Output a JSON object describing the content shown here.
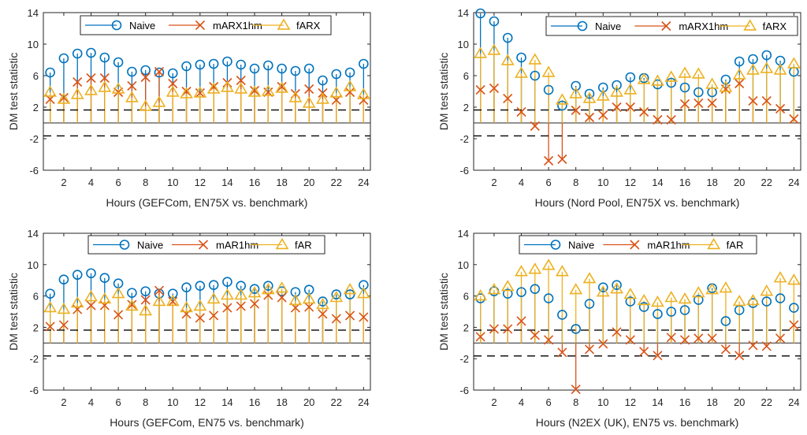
{
  "figure": {
    "colors": {
      "naive": "#0072BD",
      "marx": "#D95319",
      "farx": "#EDB120",
      "axis": "#262626",
      "critical_line": "#000000",
      "zero_line": "#262626"
    }
  },
  "chart_data": [
    {
      "type": "stem",
      "id": "gefcom-en75x",
      "title": "",
      "xlabel": "Hours (GEFCom, EN75X vs. benchmark)",
      "ylabel": "DM test statistic",
      "xlim": [
        0.5,
        24.5
      ],
      "ylim": [
        -6,
        14
      ],
      "xticks": [
        2,
        4,
        6,
        8,
        10,
        12,
        14,
        16,
        18,
        20,
        22,
        24
      ],
      "xtick_labels": [
        "2",
        "4",
        "6",
        "8",
        "10",
        "12",
        "14",
        "16",
        "18",
        "20",
        "22",
        "24"
      ],
      "yticks": [
        -6,
        -2,
        2,
        6,
        10,
        14
      ],
      "ytick_labels": [
        "-6",
        "-2",
        "2",
        "6",
        "10",
        "14"
      ],
      "critical_values": [
        1.645,
        -1.645
      ],
      "legend_position": "top-center",
      "x": [
        1,
        2,
        3,
        4,
        5,
        6,
        7,
        8,
        9,
        10,
        11,
        12,
        13,
        14,
        15,
        16,
        17,
        18,
        19,
        20,
        21,
        22,
        23,
        24
      ],
      "series": [
        {
          "name": "Naive",
          "marker": "circle",
          "color_key": "naive",
          "values": [
            6.4,
            8.2,
            8.8,
            8.9,
            8.3,
            7.7,
            6.5,
            6.7,
            6.4,
            6.3,
            7.2,
            7.4,
            7.5,
            7.8,
            7.4,
            6.9,
            7.3,
            6.9,
            6.6,
            6.9,
            5.4,
            6.2,
            6.4,
            7.5
          ]
        },
        {
          "name": "mARX1hm",
          "marker": "x",
          "color_key": "marx",
          "values": [
            3.0,
            3.2,
            5.2,
            5.7,
            5.7,
            3.9,
            4.7,
            5.8,
            6.5,
            5.0,
            4.0,
            3.8,
            4.6,
            5.1,
            5.4,
            4.1,
            3.9,
            4.6,
            3.7,
            4.3,
            3.8,
            2.9,
            3.9,
            2.9
          ]
        },
        {
          "name": "fARX",
          "marker": "triangle",
          "color_key": "farx",
          "values": [
            3.9,
            3.0,
            3.6,
            4.1,
            4.5,
            4.3,
            3.2,
            2.1,
            2.6,
            3.9,
            3.7,
            3.8,
            4.3,
            4.5,
            4.3,
            3.9,
            4.0,
            4.4,
            3.2,
            2.5,
            3.0,
            3.8,
            4.6,
            3.6
          ]
        }
      ]
    },
    {
      "type": "stem",
      "id": "nordpool-en75x",
      "title": "",
      "xlabel": "Hours (Nord Pool, EN75X vs. benchmark)",
      "ylabel": "DM test statistic",
      "xlim": [
        0.5,
        24.5
      ],
      "ylim": [
        -6,
        14
      ],
      "xticks": [
        2,
        4,
        6,
        8,
        10,
        12,
        14,
        16,
        18,
        20,
        22,
        24
      ],
      "xtick_labels": [
        "2",
        "4",
        "6",
        "8",
        "10",
        "12",
        "14",
        "16",
        "18",
        "20",
        "22",
        "24"
      ],
      "yticks": [
        -6,
        -2,
        2,
        6,
        10,
        14
      ],
      "ytick_labels": [
        "-6",
        "-2",
        "2",
        "6",
        "10",
        "14"
      ],
      "critical_values": [
        1.645,
        -1.645
      ],
      "legend_position": "top-right",
      "x": [
        1,
        2,
        3,
        4,
        5,
        6,
        7,
        8,
        9,
        10,
        11,
        12,
        13,
        14,
        15,
        16,
        17,
        18,
        19,
        20,
        21,
        22,
        23,
        24
      ],
      "series": [
        {
          "name": "Naive",
          "marker": "circle",
          "color_key": "naive",
          "values": [
            13.9,
            12.9,
            10.8,
            8.3,
            6.0,
            4.2,
            2.2,
            4.7,
            3.7,
            4.5,
            4.8,
            5.8,
            5.7,
            4.9,
            5.1,
            4.5,
            3.9,
            3.9,
            5.5,
            7.8,
            8.1,
            8.6,
            7.9,
            6.5
          ]
        },
        {
          "name": "mARX1hm",
          "marker": "x",
          "color_key": "marx",
          "values": [
            4.2,
            4.4,
            3.1,
            1.4,
            -0.4,
            -4.8,
            -4.6,
            1.6,
            0.7,
            1.0,
            2.0,
            2.0,
            1.4,
            0.4,
            0.4,
            2.4,
            2.5,
            2.5,
            4.3,
            5.0,
            2.8,
            2.8,
            1.8,
            0.5
          ]
        },
        {
          "name": "fARX",
          "marker": "triangle",
          "color_key": "farx",
          "values": [
            8.8,
            9.2,
            7.9,
            6.3,
            8.0,
            6.4,
            2.9,
            3.7,
            3.1,
            3.4,
            3.9,
            4.2,
            5.5,
            5.3,
            5.8,
            6.3,
            6.2,
            4.9,
            4.5,
            6.1,
            6.7,
            6.9,
            6.7,
            7.5
          ]
        }
      ]
    },
    {
      "type": "stem",
      "id": "gefcom-en75",
      "title": "",
      "xlabel": "Hours (GEFCom, EN75 vs. benchmark)",
      "ylabel": "DM test statistic",
      "xlim": [
        0.5,
        24.5
      ],
      "ylim": [
        -6,
        14
      ],
      "xticks": [
        2,
        4,
        6,
        8,
        10,
        12,
        14,
        16,
        18,
        20,
        22,
        24
      ],
      "xtick_labels": [
        "2",
        "4",
        "6",
        "8",
        "10",
        "12",
        "14",
        "16",
        "18",
        "20",
        "22",
        "24"
      ],
      "yticks": [
        -6,
        -2,
        2,
        6,
        10,
        14
      ],
      "ytick_labels": [
        "-6",
        "-2",
        "2",
        "6",
        "10",
        "14"
      ],
      "critical_values": [
        1.645,
        -1.645
      ],
      "legend_position": "top-center",
      "x": [
        1,
        2,
        3,
        4,
        5,
        6,
        7,
        8,
        9,
        10,
        11,
        12,
        13,
        14,
        15,
        16,
        17,
        18,
        19,
        20,
        21,
        22,
        23,
        24
      ],
      "series": [
        {
          "name": "Naive",
          "marker": "circle",
          "color_key": "naive",
          "values": [
            6.3,
            8.1,
            8.7,
            8.9,
            8.3,
            7.6,
            6.4,
            6.6,
            6.3,
            6.3,
            7.1,
            7.3,
            7.4,
            7.8,
            7.3,
            6.9,
            7.3,
            6.6,
            6.5,
            6.8,
            5.3,
            6.2,
            6.2,
            7.4
          ]
        },
        {
          "name": "mAR1hm",
          "marker": "x",
          "color_key": "marx",
          "values": [
            2.1,
            2.3,
            4.3,
            4.8,
            4.8,
            3.6,
            4.9,
            5.5,
            6.7,
            5.3,
            3.7,
            3.2,
            3.5,
            4.5,
            4.7,
            5.0,
            6.1,
            5.8,
            4.5,
            4.6,
            3.7,
            3.1,
            3.5,
            3.3
          ]
        },
        {
          "name": "fAR",
          "marker": "triangle",
          "color_key": "farx",
          "values": [
            4.5,
            4.3,
            5.1,
            5.9,
            5.6,
            6.3,
            4.7,
            4.1,
            5.3,
            5.3,
            4.5,
            4.7,
            5.6,
            6.1,
            6.1,
            6.4,
            6.8,
            7.0,
            5.4,
            5.6,
            4.9,
            5.8,
            6.8,
            6.3
          ]
        }
      ]
    },
    {
      "type": "stem",
      "id": "n2ex-en75",
      "title": "",
      "xlabel": "Hours (N2EX (UK), EN75 vs. benchmark)",
      "ylabel": "DM test statistic",
      "xlim": [
        0.5,
        24.5
      ],
      "ylim": [
        -6,
        14
      ],
      "xticks": [
        2,
        4,
        6,
        8,
        10,
        12,
        14,
        16,
        18,
        20,
        22,
        24
      ],
      "xtick_labels": [
        "2",
        "4",
        "6",
        "8",
        "10",
        "12",
        "14",
        "16",
        "18",
        "20",
        "22",
        "24"
      ],
      "yticks": [
        -6,
        -2,
        2,
        6,
        10,
        14
      ],
      "ytick_labels": [
        "-6",
        "-2",
        "2",
        "6",
        "10",
        "14"
      ],
      "critical_values": [
        1.645,
        -1.645
      ],
      "legend_position": "top-center",
      "x": [
        1,
        2,
        3,
        4,
        5,
        6,
        7,
        8,
        9,
        10,
        11,
        12,
        13,
        14,
        15,
        16,
        17,
        18,
        19,
        20,
        21,
        22,
        23,
        24
      ],
      "series": [
        {
          "name": "Naive",
          "marker": "circle",
          "color_key": "naive",
          "values": [
            5.7,
            6.6,
            6.3,
            6.5,
            6.9,
            5.7,
            3.6,
            1.8,
            5.0,
            7.1,
            7.4,
            5.3,
            4.6,
            3.7,
            4.0,
            4.2,
            5.5,
            7.0,
            2.8,
            4.2,
            5.1,
            5.3,
            5.7,
            4.5
          ]
        },
        {
          "name": "mAR1hm",
          "marker": "x",
          "color_key": "marx",
          "values": [
            0.8,
            1.8,
            1.8,
            2.8,
            1.0,
            0.4,
            -1.2,
            -5.9,
            -0.8,
            -0.1,
            1.4,
            0.4,
            -1.1,
            -1.6,
            0.7,
            0.4,
            0.6,
            0.6,
            -0.8,
            -1.6,
            -0.3,
            -0.4,
            0.6,
            2.3
          ]
        },
        {
          "name": "fAR",
          "marker": "triangle",
          "color_key": "farx",
          "values": [
            6.0,
            6.8,
            7.2,
            9.1,
            9.4,
            9.9,
            9.1,
            6.8,
            8.2,
            6.5,
            6.9,
            6.2,
            5.4,
            5.2,
            5.8,
            5.6,
            6.4,
            6.8,
            7.0,
            5.3,
            5.4,
            6.6,
            8.3,
            8.0
          ]
        }
      ]
    }
  ]
}
